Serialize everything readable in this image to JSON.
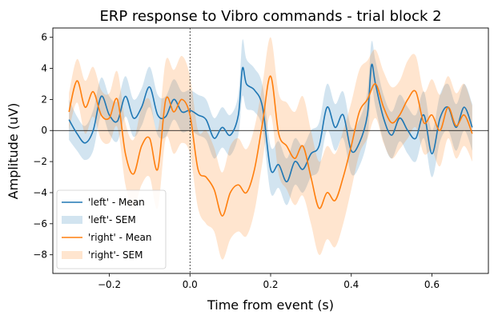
{
  "chart_data": {
    "type": "line",
    "title": "ERP response to Vibro commands - trial block 2",
    "xlabel": "Time from event (s)",
    "ylabel": "Amplitude (uV)",
    "xlim": [
      -0.34,
      0.74
    ],
    "ylim": [
      -9.2,
      6.6
    ],
    "xticks": [
      -0.2,
      0.0,
      0.2,
      0.4,
      0.6
    ],
    "xtick_labels": [
      "−0.2",
      "0.0",
      "0.2",
      "0.4",
      "0.6"
    ],
    "yticks": [
      -8,
      -6,
      -4,
      -2,
      0,
      2,
      4,
      6
    ],
    "ytick_labels": [
      "−8",
      "−6",
      "−4",
      "−2",
      "0",
      "2",
      "4",
      "6"
    ],
    "grid": false,
    "reference_lines": {
      "horizontal_y": 0,
      "vertical_x": 0.0
    },
    "legend_position": "lower-left",
    "legend": [
      {
        "label": "'left' - Mean",
        "kind": "line",
        "color": "#1f77b4"
      },
      {
        "label": "'left'- SEM",
        "kind": "band",
        "color": "#1f77b4"
      },
      {
        "label": "'right' - Mean",
        "kind": "line",
        "color": "#ff7f0e"
      },
      {
        "label": "'right'- SEM",
        "kind": "band",
        "color": "#ff7f0e"
      }
    ],
    "series": [
      {
        "name": "'left'",
        "color": "#1f77b4",
        "x": [
          -0.3,
          -0.28,
          -0.26,
          -0.24,
          -0.22,
          -0.2,
          -0.18,
          -0.16,
          -0.14,
          -0.12,
          -0.1,
          -0.08,
          -0.06,
          -0.04,
          -0.02,
          0.0,
          0.02,
          0.04,
          0.06,
          0.08,
          0.1,
          0.12,
          0.13,
          0.14,
          0.16,
          0.18,
          0.2,
          0.22,
          0.24,
          0.26,
          0.28,
          0.3,
          0.32,
          0.34,
          0.36,
          0.38,
          0.4,
          0.42,
          0.44,
          0.45,
          0.46,
          0.48,
          0.5,
          0.52,
          0.54,
          0.56,
          0.58,
          0.6,
          0.62,
          0.64,
          0.66,
          0.68,
          0.7
        ],
        "mean": [
          0.7,
          -0.2,
          -0.8,
          0.0,
          2.2,
          1.0,
          0.6,
          2.2,
          0.8,
          1.5,
          2.8,
          1.0,
          0.9,
          2.0,
          1.2,
          1.3,
          1.0,
          0.7,
          -0.5,
          0.2,
          -0.3,
          1.0,
          4.0,
          3.0,
          2.6,
          1.5,
          -2.5,
          -2.2,
          -3.3,
          -2.0,
          -2.5,
          -1.5,
          -1.0,
          1.5,
          0.2,
          1.0,
          -1.3,
          -0.8,
          1.0,
          4.2,
          3.0,
          0.8,
          -0.3,
          0.8,
          0.0,
          -0.5,
          1.0,
          -1.5,
          0.8,
          1.5,
          0.2,
          1.5,
          0.2
        ],
        "sem_lower": [
          -0.6,
          -1.3,
          -1.9,
          -1.3,
          1.0,
          -0.2,
          -0.7,
          0.9,
          -0.4,
          0.3,
          1.5,
          -0.3,
          -0.4,
          0.7,
          -0.1,
          0.0,
          -0.3,
          -0.6,
          -1.8,
          -1.1,
          -1.6,
          -0.3,
          2.2,
          1.4,
          1.2,
          0.1,
          -4.0,
          -3.7,
          -4.8,
          -3.5,
          -4.0,
          -3.0,
          -2.5,
          0.0,
          -1.3,
          -0.5,
          -2.8,
          -2.3,
          -0.5,
          2.7,
          1.5,
          -0.7,
          -1.8,
          -0.7,
          -1.5,
          -2.0,
          -0.5,
          -3.0,
          -0.7,
          0.0,
          -1.3,
          0.0,
          -1.3
        ],
        "sem_upper": [
          2.0,
          0.9,
          0.3,
          1.3,
          3.4,
          2.2,
          1.9,
          3.5,
          2.0,
          2.7,
          4.1,
          2.3,
          2.2,
          3.3,
          2.5,
          2.6,
          2.3,
          2.0,
          0.8,
          1.5,
          1.0,
          2.3,
          5.8,
          4.6,
          4.0,
          2.9,
          -1.0,
          -0.7,
          -1.8,
          -0.5,
          -1.0,
          0.0,
          0.5,
          3.0,
          1.7,
          2.5,
          0.2,
          0.7,
          2.5,
          5.7,
          4.5,
          2.3,
          1.2,
          2.3,
          1.5,
          1.0,
          2.5,
          0.0,
          2.3,
          3.0,
          1.7,
          3.0,
          1.7
        ]
      },
      {
        "name": "'right'",
        "color": "#ff7f0e",
        "x": [
          -0.3,
          -0.28,
          -0.26,
          -0.24,
          -0.22,
          -0.2,
          -0.18,
          -0.16,
          -0.14,
          -0.12,
          -0.1,
          -0.08,
          -0.06,
          -0.04,
          -0.02,
          0.0,
          0.02,
          0.04,
          0.06,
          0.08,
          0.1,
          0.12,
          0.14,
          0.16,
          0.18,
          0.2,
          0.22,
          0.24,
          0.26,
          0.28,
          0.3,
          0.32,
          0.34,
          0.36,
          0.38,
          0.4,
          0.42,
          0.44,
          0.46,
          0.48,
          0.5,
          0.52,
          0.54,
          0.56,
          0.58,
          0.6,
          0.62,
          0.64,
          0.66,
          0.68,
          0.7
        ],
        "mean": [
          1.2,
          3.2,
          1.5,
          2.5,
          1.0,
          0.8,
          2.0,
          -1.5,
          -2.8,
          -1.0,
          -0.5,
          -2.5,
          2.0,
          1.2,
          2.0,
          1.0,
          -2.5,
          -3.0,
          -3.8,
          -5.5,
          -4.0,
          -3.5,
          -4.0,
          -2.5,
          0.5,
          3.5,
          -0.2,
          -1.0,
          -1.8,
          -1.0,
          -3.0,
          -5.0,
          -4.0,
          -4.5,
          -3.0,
          -1.0,
          1.2,
          2.0,
          3.0,
          1.5,
          0.5,
          1.0,
          2.0,
          2.5,
          0.5,
          1.0,
          0.0,
          1.5,
          0.3,
          1.0,
          -0.2
        ],
        "sem_lower": [
          0.0,
          1.8,
          -0.2,
          0.9,
          -0.6,
          -0.8,
          0.2,
          -3.5,
          -5.0,
          -3.5,
          -3.0,
          -5.0,
          -0.5,
          -1.5,
          -0.8,
          -1.5,
          -5.0,
          -6.0,
          -6.5,
          -8.3,
          -7.0,
          -6.5,
          -6.8,
          -5.2,
          -2.0,
          1.0,
          -2.8,
          -3.8,
          -4.8,
          -4.2,
          -6.0,
          -8.0,
          -7.0,
          -7.5,
          -6.0,
          -3.8,
          -1.5,
          -0.5,
          0.8,
          -0.8,
          -1.8,
          -1.2,
          -0.5,
          0.2,
          -1.5,
          -1.3,
          -2.3,
          -0.5,
          -1.8,
          -1.0,
          -2.0
        ],
        "sem_upper": [
          2.4,
          4.6,
          3.2,
          4.1,
          2.6,
          2.4,
          3.8,
          0.5,
          -0.6,
          1.5,
          2.0,
          0.0,
          4.5,
          3.9,
          4.8,
          3.5,
          0.0,
          0.0,
          -1.1,
          -2.7,
          -1.0,
          -0.5,
          -1.2,
          0.2,
          3.0,
          6.0,
          2.4,
          1.8,
          1.2,
          2.2,
          0.0,
          -2.0,
          -1.0,
          -1.5,
          0.0,
          1.8,
          3.9,
          4.5,
          5.2,
          3.8,
          2.8,
          3.2,
          4.5,
          4.8,
          2.5,
          3.3,
          2.3,
          3.5,
          2.4,
          3.0,
          1.6
        ]
      }
    ]
  }
}
